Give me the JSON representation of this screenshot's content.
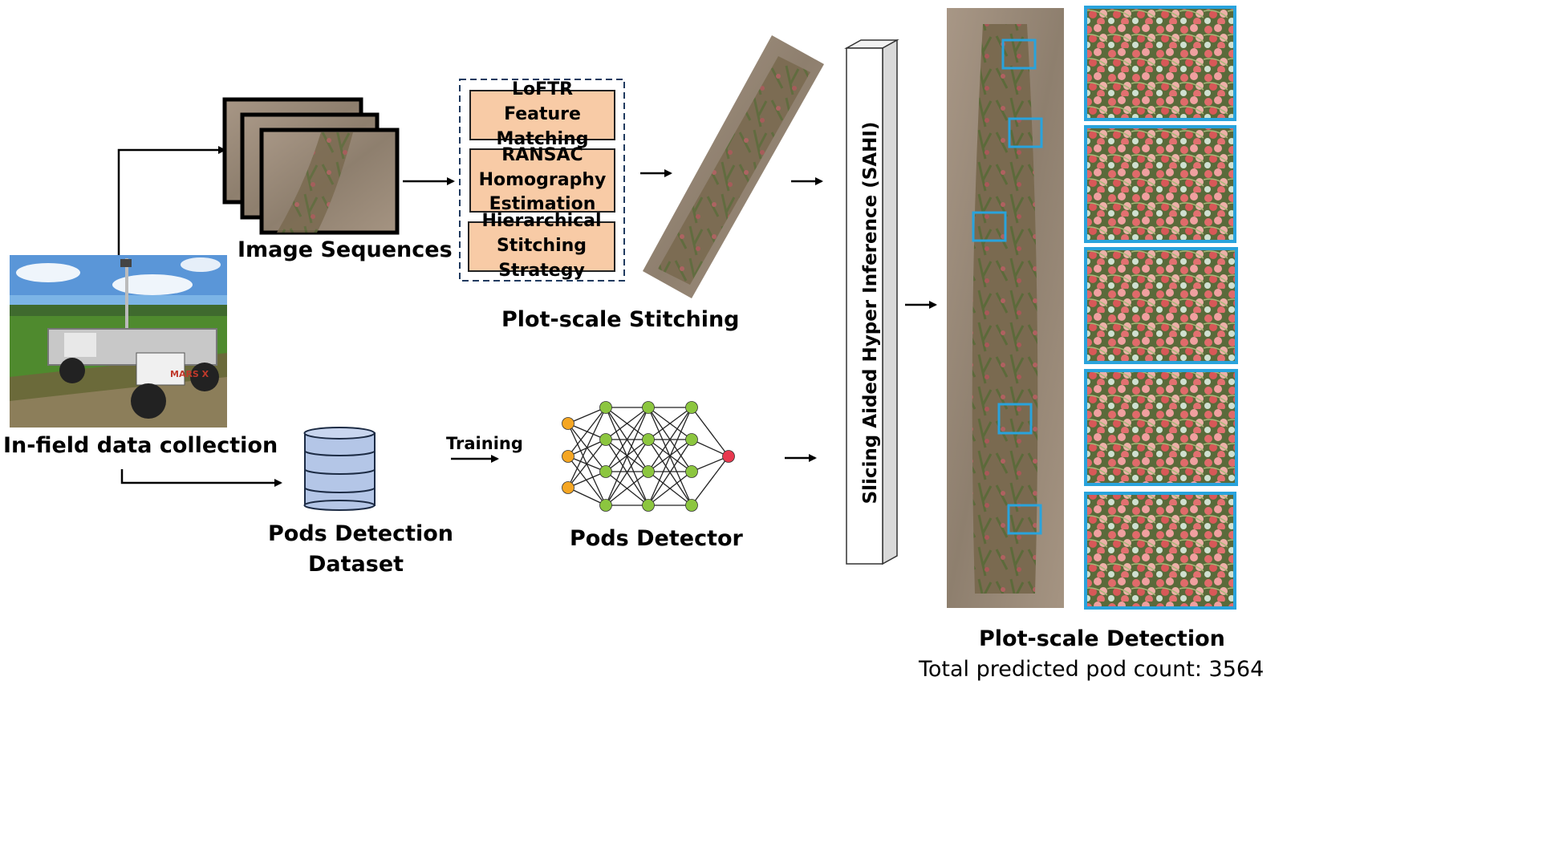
{
  "labels": {
    "image_sequences": "Image Sequences",
    "in_field": "In-field data collection",
    "plot_stitching": "Plot-scale Stitching",
    "training": "Training",
    "pods_detector": "Pods Detector",
    "dataset_line1": "Pods Detection",
    "dataset_line2": "Dataset",
    "sahi": "Slicing Aided Hyper Inference (SAHI)",
    "plot_detection": "Plot-scale Detection",
    "pod_count": "Total predicted pod count: 3564"
  },
  "stitching_steps": [
    "LoFTR Feature\nMatching",
    "RANSAC\nHomography\nEstimation",
    "Hierarchical\nStitching Strategy"
  ],
  "robot_label": "MARS X",
  "colors": {
    "step_fill": "#f8cba6",
    "cylinder_fill": "#b4c6e7",
    "detection_box": "#29a3dc",
    "input_node": "#f5a623",
    "hidden_node": "#8cc63f",
    "output_node": "#e8384f",
    "soil": "#9a8a78"
  }
}
